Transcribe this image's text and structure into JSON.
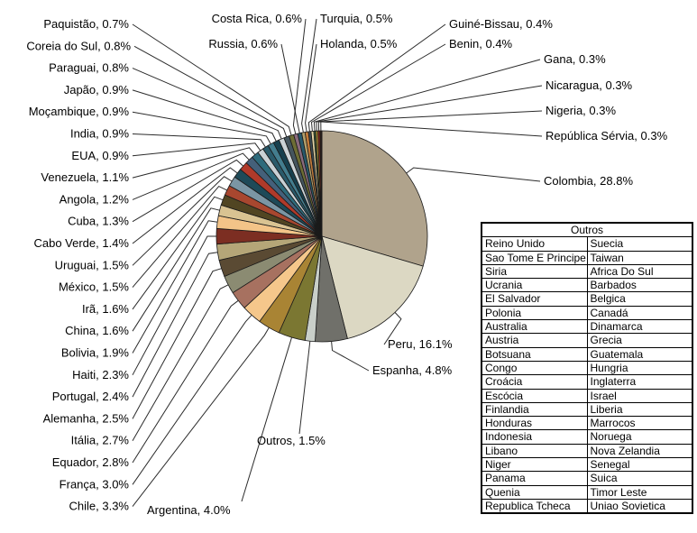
{
  "chart_data": {
    "type": "pie",
    "title": "",
    "label_format": "{name}, {value}%",
    "start_angle_deg": 0,
    "direction": "clockwise",
    "series": [
      {
        "label": "Colombia",
        "value": 28.8,
        "color": "#b0a38c"
      },
      {
        "label": "Peru",
        "value": 16.1,
        "color": "#dcd8c3"
      },
      {
        "label": "Espanha",
        "value": 4.8,
        "color": "#70706a"
      },
      {
        "label": "Outros",
        "value": 1.5,
        "color": "#c9cfc9"
      },
      {
        "label": "Argentina",
        "value": 4.0,
        "color": "#7b7732"
      },
      {
        "label": "Chile",
        "value": 3.3,
        "color": "#a98434"
      },
      {
        "label": "França",
        "value": 3.0,
        "color": "#f5c78b"
      },
      {
        "label": "Equador",
        "value": 2.8,
        "color": "#a77160"
      },
      {
        "label": "Itália",
        "value": 2.7,
        "color": "#8b8b72"
      },
      {
        "label": "Alemanha",
        "value": 2.5,
        "color": "#5a4a33"
      },
      {
        "label": "Portugal",
        "value": 2.4,
        "color": "#b5a678"
      },
      {
        "label": "Haiti",
        "value": 2.3,
        "color": "#7c2e22"
      },
      {
        "label": "Bolivia",
        "value": 1.9,
        "color": "#f3c488"
      },
      {
        "label": "China",
        "value": 1.6,
        "color": "#d9c392"
      },
      {
        "label": "Irã",
        "value": 1.6,
        "color": "#514522"
      },
      {
        "label": "México",
        "value": 1.5,
        "color": "#a8472f"
      },
      {
        "label": "Uruguai",
        "value": 1.5,
        "color": "#7b96a4"
      },
      {
        "label": "Cabo Verde",
        "value": 1.4,
        "color": "#1e4a58"
      },
      {
        "label": "Cuba",
        "value": 1.3,
        "color": "#b03a2a"
      },
      {
        "label": "Angola",
        "value": 1.2,
        "color": "#44607a"
      },
      {
        "label": "Venezuela",
        "value": 1.1,
        "color": "#2e6b7c"
      },
      {
        "label": "EUA",
        "value": 0.9,
        "color": "#c9d1d5"
      },
      {
        "label": "India",
        "value": 0.9,
        "color": "#2a5a6a"
      },
      {
        "label": "Moçambique",
        "value": 0.9,
        "color": "#437d8e"
      },
      {
        "label": "Japão",
        "value": 0.9,
        "color": "#17404e"
      },
      {
        "label": "Paraguai",
        "value": 0.8,
        "color": "#ccd3d6"
      },
      {
        "label": "Coreia do Sul",
        "value": 0.8,
        "color": "#45555e"
      },
      {
        "label": "Paquistão",
        "value": 0.7,
        "color": "#6d6d35"
      },
      {
        "label": "Costa Rica",
        "value": 0.6,
        "color": "#8a6b7d"
      },
      {
        "label": "Russia",
        "value": 0.6,
        "color": "#27596b"
      },
      {
        "label": "Turquia",
        "value": 0.5,
        "color": "#b3a06b"
      },
      {
        "label": "Holanda",
        "value": 0.5,
        "color": "#c07a3a"
      },
      {
        "label": "Guiné-Bissau",
        "value": 0.4,
        "color": "#3c4a52"
      },
      {
        "label": "Benin",
        "value": 0.4,
        "color": "#e3d3a3"
      },
      {
        "label": "Gana",
        "value": 0.3,
        "color": "#3f5a35"
      },
      {
        "label": "Nicaragua",
        "value": 0.3,
        "color": "#c19a35"
      },
      {
        "label": "Nigeria",
        "value": 0.3,
        "color": "#8e2f25"
      },
      {
        "label": "República Sérvia",
        "value": 0.3,
        "color": "#2a1f1a"
      }
    ],
    "legend_table": {
      "title": "Outros",
      "rows": [
        [
          "Reino Unido",
          "Suecia"
        ],
        [
          "Sao Tome E Principe",
          "Taiwan"
        ],
        [
          "Siria",
          "Africa Do Sul"
        ],
        [
          "Ucrania",
          "Barbados"
        ],
        [
          "El Salvador",
          "Belgica"
        ],
        [
          "Polonia",
          "Canadá"
        ],
        [
          "Australia",
          "Dinamarca"
        ],
        [
          "Austria",
          "Grecia"
        ],
        [
          "Botsuana",
          "Guatemala"
        ],
        [
          "Congo",
          "Hungria"
        ],
        [
          "Croácia",
          "Inglaterra"
        ],
        [
          "Escócia",
          "Israel"
        ],
        [
          "Finlandia",
          "Liberia"
        ],
        [
          "Honduras",
          "Marrocos"
        ],
        [
          "Indonesia",
          "Noruega"
        ],
        [
          "Libano",
          "Nova Zelandia"
        ],
        [
          "Niger",
          "Senegal"
        ],
        [
          "Panama",
          "Suica"
        ],
        [
          "Quenia",
          "Timor Leste"
        ],
        [
          "Republica Tcheca",
          "Uniao Sovietica"
        ]
      ]
    }
  }
}
